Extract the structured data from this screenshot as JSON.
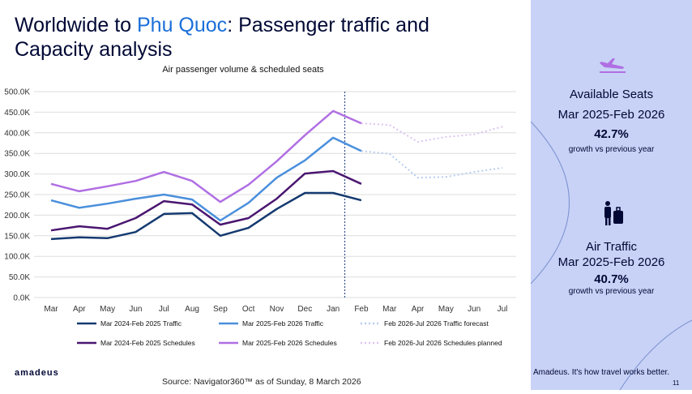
{
  "slide": {
    "title_parts": [
      "Worldwide to ",
      "Phu Quoc",
      ": Passenger traffic and Capacity analysis"
    ],
    "panel": [
      {
        "label": "Available Seats",
        "period": "Mar 2025-Feb 2026",
        "value": "42.7%",
        "note": "growth vs previous year"
      },
      {
        "label": "Air Traffic",
        "period": "Mar 2025-Feb 2026",
        "value": "40.7%",
        "note": "growth vs previous year"
      }
    ],
    "logo": "amadeus",
    "source": "Source: Navigator360™ as of Sunday, 8 March 2026",
    "tagline": "Amadeus. It's how travel works better.",
    "page": "11"
  },
  "chart_data": {
    "type": "line",
    "title": "Air passenger volume & scheduled seats",
    "categories": [
      "Mar",
      "Apr",
      "May",
      "Jun",
      "Jul",
      "Aug",
      "Sep",
      "Oct",
      "Nov",
      "Dec",
      "Jan",
      "Feb",
      "Mar",
      "Apr",
      "May",
      "Jun",
      "Jul"
    ],
    "ylim": [
      0,
      500000
    ],
    "yticks": [
      {
        "value": 0,
        "label": "0.0K"
      },
      {
        "value": 50000,
        "label": "50.0K"
      },
      {
        "value": 100000,
        "label": "100.0K"
      },
      {
        "value": 150000,
        "label": "150.0K"
      },
      {
        "value": 200000,
        "label": "200.0K"
      },
      {
        "value": 250000,
        "label": "250.0K"
      },
      {
        "value": 300000,
        "label": "300.0K"
      },
      {
        "value": 350000,
        "label": "350.0K"
      },
      {
        "value": 400000,
        "label": "400.0K"
      },
      {
        "value": 450000,
        "label": "450.0K"
      },
      {
        "value": 500000,
        "label": "500.0K"
      }
    ],
    "grid": true,
    "series": [
      {
        "name": "Mar 2024-Feb 2025 Traffic",
        "color": "#153a70",
        "dashed": false,
        "values": [
          142000,
          146000,
          144000,
          159000,
          203000,
          205000,
          150000,
          169000,
          215000,
          254000,
          254000,
          236000,
          null,
          null,
          null,
          null,
          null
        ]
      },
      {
        "name": "Mar 2025-Feb 2026 Traffic",
        "color": "#4a8fdc",
        "dashed": false,
        "values": [
          236000,
          218000,
          228000,
          240000,
          250000,
          238000,
          187000,
          230000,
          291000,
          333000,
          388000,
          356000,
          null,
          null,
          null,
          null,
          null
        ]
      },
      {
        "name": "Feb 2026-Jul 2026 Traffic forecast",
        "color": "#b7cdf0",
        "dashed": true,
        "values": [
          null,
          null,
          null,
          null,
          null,
          null,
          null,
          null,
          null,
          null,
          null,
          356000,
          349000,
          291000,
          293000,
          305000,
          315000
        ]
      },
      {
        "name": "Mar 2024-Feb 2025 Schedules",
        "color": "#4a1670",
        "dashed": false,
        "values": [
          163000,
          173000,
          167000,
          193000,
          234000,
          226000,
          177000,
          193000,
          240000,
          301000,
          307000,
          276000,
          null,
          null,
          null,
          null,
          null
        ]
      },
      {
        "name": "Mar 2025-Feb 2026 Schedules",
        "color": "#b06fe3",
        "dashed": false,
        "values": [
          276000,
          258000,
          270000,
          283000,
          305000,
          283000,
          232000,
          274000,
          331000,
          394000,
          453000,
          423000,
          null,
          null,
          null,
          null,
          null
        ]
      },
      {
        "name": "Feb 2026-Jul 2026 Schedules planned",
        "color": "#dcc4f2",
        "dashed": true,
        "values": [
          null,
          null,
          null,
          null,
          null,
          null,
          null,
          null,
          null,
          null,
          null,
          423000,
          419000,
          378000,
          390000,
          396000,
          415000
        ]
      }
    ]
  }
}
